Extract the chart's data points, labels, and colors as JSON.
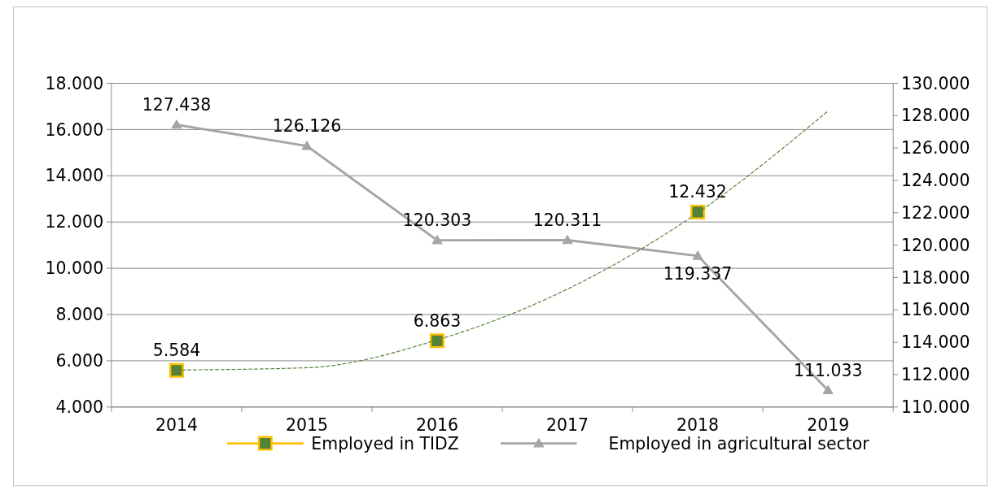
{
  "chart_data": {
    "type": "line",
    "categories": [
      "2014",
      "2015",
      "2016",
      "2017",
      "2018",
      "2019"
    ],
    "ylim": [
      4000,
      18000
    ],
    "yticks": [
      {
        "value": 4000,
        "label": "4.000"
      },
      {
        "value": 6000,
        "label": "6.000"
      },
      {
        "value": 8000,
        "label": "8.000"
      },
      {
        "value": 10000,
        "label": "10.000"
      },
      {
        "value": 12000,
        "label": "12.000"
      },
      {
        "value": 14000,
        "label": "14.000"
      },
      {
        "value": 16000,
        "label": "16.000"
      },
      {
        "value": 18000,
        "label": "18.000"
      }
    ],
    "y2lim": [
      110000,
      130000
    ],
    "y2ticks": [
      {
        "value": 110000,
        "label": "110.000"
      },
      {
        "value": 112000,
        "label": "112.000"
      },
      {
        "value": 114000,
        "label": "114.000"
      },
      {
        "value": 116000,
        "label": "116.000"
      },
      {
        "value": 118000,
        "label": "118.000"
      },
      {
        "value": 120000,
        "label": "120.000"
      },
      {
        "value": 122000,
        "label": "122.000"
      },
      {
        "value": 124000,
        "label": "124.000"
      },
      {
        "value": 126000,
        "label": "126.000"
      },
      {
        "value": 128000,
        "label": "128.000"
      },
      {
        "value": 130000,
        "label": "130.000"
      }
    ],
    "grid": "y",
    "legend": "bottom",
    "series": [
      {
        "name": "Employed in TIDZ",
        "type": "scatter",
        "color": "#548235",
        "marker": "square",
        "values": [
          5584,
          null,
          6863,
          null,
          12432,
          null
        ],
        "value_labels": [
          "5.584",
          null,
          "6.863",
          null,
          "12.432",
          null
        ]
      },
      {
        "name": "Employed in agricultural sector",
        "axis": "y2",
        "color": "#a5a5a5",
        "marker": "triangle",
        "values": [
          127438,
          126126,
          120303,
          120311,
          119337,
          111033
        ],
        "value_labels": [
          "127.438",
          "126.126",
          "120.303",
          "120.311",
          "119.337",
          "111.033"
        ]
      },
      {
        "type": "line",
        "color": "#548235",
        "line_style": "dashed",
        "marker": "none",
        "values": [
          5600,
          5700,
          6900,
          9100,
          12400,
          16800
        ]
      }
    ]
  }
}
